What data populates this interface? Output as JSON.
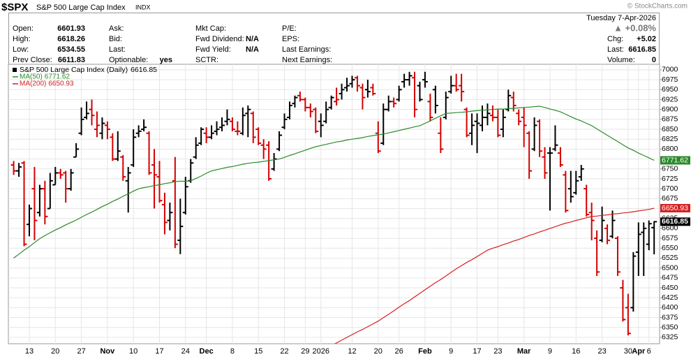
{
  "header": {
    "symbol": "$SPX",
    "name": "S&P 500 Large Cap Index",
    "exchange": "INDX",
    "watermark": "© StockCharts.com",
    "date": "Tuesday  7-Apr-2026",
    "change_pct": "▲ +0.08%",
    "quote": [
      {
        "label": "Open:"
      },
      {
        "label": "High:"
      },
      {
        "label": "Low:"
      },
      {
        "label": "Prev Close:"
      }
    ],
    "col2": [
      {
        "label": "Ask:"
      },
      {
        "label": "Bid:"
      },
      {
        "label": "Last:"
      },
      {
        "label": "Optionable:",
        "value": "yes"
      }
    ],
    "col3": [
      {
        "label": "Mkt Cap:"
      },
      {
        "label": "Fwd Dividend:",
        "value": "N/A"
      },
      {
        "label": "Fwd Yield:",
        "value": "N/A"
      },
      {
        "label": "SCTR:"
      }
    ],
    "col4": [
      {
        "label": "P/E:"
      },
      {
        "label": "EPS:"
      },
      {
        "label": "Last Earnings:"
      },
      {
        "label": "Next Earnings:"
      }
    ],
    "right": [
      {
        "label": "Chg:",
        "value": "+5.02"
      },
      {
        "label": "Last:"
      },
      {
        "label": "Volume:",
        "value": 0
      }
    ]
  },
  "chart_data": {
    "type": "ohlc",
    "title": "S&P 500 Large Cap Index (Daily)",
    "up_color": "#000000",
    "down_color": "#d40000",
    "grid": true,
    "ylim": [
      6309,
      7014
    ],
    "yticks": [
      6325,
      6350,
      6375,
      6400,
      6425,
      6450,
      6475,
      6500,
      6525,
      6550,
      6575,
      6600,
      6625,
      6650,
      6675,
      6700,
      6725,
      6750,
      6775,
      6800,
      6825,
      6850,
      6875,
      6900,
      6925,
      6950,
      6975,
      7000
    ],
    "categories": [
      null,
      null,
      null,
      "13",
      null,
      null,
      null,
      null,
      "20",
      null,
      null,
      null,
      null,
      "27",
      null,
      null,
      null,
      null,
      "Nov",
      null,
      null,
      null,
      null,
      "10",
      null,
      null,
      null,
      null,
      "17",
      null,
      null,
      null,
      null,
      "24",
      null,
      null,
      null,
      "Dec",
      null,
      null,
      null,
      null,
      "8",
      null,
      null,
      null,
      null,
      "15",
      null,
      null,
      null,
      null,
      "22",
      null,
      null,
      null,
      "29",
      null,
      null,
      "2026",
      null,
      null,
      null,
      null,
      null,
      "12",
      null,
      null,
      null,
      null,
      "20",
      null,
      null,
      null,
      "26",
      null,
      null,
      null,
      null,
      "Feb",
      null,
      null,
      null,
      null,
      "9",
      null,
      null,
      null,
      null,
      "17",
      null,
      null,
      null,
      "23",
      null,
      null,
      null,
      null,
      "Mar",
      null,
      null,
      null,
      null,
      "9",
      null,
      null,
      null,
      null,
      "16",
      null,
      null,
      null,
      null,
      "23",
      null,
      null,
      null,
      null,
      "30",
      null,
      "Apr",
      null,
      "6",
      null
    ],
    "series": [
      {
        "name": "S&P 500 Large Cap Index (Daily)",
        "open": [
          6760,
          6745,
          6765,
          6610,
          6700,
          6640,
          6700,
          6650,
          6710,
          6740,
          6740,
          6700,
          6780,
          6840,
          6880,
          6900,
          6850,
          6840,
          6860,
          6830,
          6775,
          6780,
          6720,
          6760,
          6840,
          6850,
          6840,
          6760,
          6730,
          6660,
          6620,
          6720,
          6570,
          6640,
          6720,
          6780,
          6815,
          6840,
          6830,
          6845,
          6855,
          6870,
          6870,
          6845,
          6840,
          6890,
          6890,
          6850,
          6810,
          6810,
          6750,
          6800,
          6855,
          6880,
          6915,
          6935,
          6925,
          6905,
          6900,
          6870,
          6870,
          6905,
          6920,
          6940,
          6955,
          6965,
          6980,
          6955,
          6950,
          6955,
          6840,
          6815,
          6900,
          6920,
          6925,
          6970,
          6975,
          6980,
          6960,
          6975,
          6920,
          6950,
          6840,
          6880,
          6945,
          6960,
          6960,
          6900,
          6840,
          6870,
          6860,
          6880,
          6885,
          6880,
          6850,
          6900,
          6930,
          6890,
          6880,
          6840,
          6800,
          6870,
          6780,
          6790,
          6800,
          6790,
          6735,
          6700,
          6690,
          6730,
          6700,
          6640,
          6575,
          6570,
          6600,
          6580,
          6575,
          6450,
          6400,
          6400,
          6540,
          6590,
          6560,
          6601.93
        ],
        "high": [
          6770,
          6765,
          6770,
          6660,
          6755,
          6710,
          6720,
          6740,
          6755,
          6750,
          6745,
          6750,
          6815,
          6905,
          6920,
          6925,
          6895,
          6880,
          6870,
          6840,
          6845,
          6785,
          6755,
          6850,
          6860,
          6875,
          6845,
          6800,
          6770,
          6690,
          6665,
          6780,
          6675,
          6730,
          6775,
          6830,
          6855,
          6855,
          6860,
          6870,
          6880,
          6900,
          6880,
          6870,
          6905,
          6910,
          6895,
          6855,
          6825,
          6820,
          6790,
          6845,
          6890,
          6920,
          6935,
          6945,
          6930,
          6915,
          6905,
          6890,
          6920,
          6935,
          6955,
          6965,
          6980,
          6985,
          6985,
          6965,
          6975,
          6965,
          6870,
          6915,
          6935,
          6930,
          6960,
          6990,
          6995,
          6995,
          6970,
          6995,
          6940,
          6960,
          6880,
          6945,
          6985,
          6990,
          6990,
          6905,
          6890,
          6890,
          6910,
          6915,
          6910,
          6900,
          6900,
          6950,
          6945,
          6900,
          6905,
          6845,
          6880,
          6875,
          6805,
          6805,
          6860,
          6805,
          6745,
          6745,
          6745,
          6760,
          6710,
          6665,
          6595,
          6655,
          6610,
          6645,
          6580,
          6470,
          6435,
          6540,
          6615,
          6615,
          6620,
          6618.26
        ],
        "low": [
          6735,
          6730,
          6555,
          6580,
          6570,
          6630,
          6610,
          6650,
          6710,
          6725,
          6665,
          6695,
          6780,
          6835,
          6875,
          6860,
          6830,
          6825,
          6825,
          6770,
          6770,
          6720,
          6640,
          6755,
          6830,
          6845,
          6735,
          6650,
          6665,
          6585,
          6595,
          6550,
          6535,
          6635,
          6715,
          6775,
          6810,
          6815,
          6825,
          6835,
          6845,
          6860,
          6845,
          6835,
          6835,
          6830,
          6815,
          6810,
          6775,
          6720,
          6745,
          6795,
          6850,
          6875,
          6905,
          6920,
          6895,
          6880,
          6840,
          6830,
          6865,
          6900,
          6910,
          6925,
          6945,
          6955,
          6945,
          6900,
          6930,
          6935,
          6790,
          6810,
          6895,
          6905,
          6920,
          6955,
          6960,
          6880,
          6920,
          6955,
          6870,
          6890,
          6790,
          6875,
          6940,
          6945,
          6920,
          6830,
          6810,
          6790,
          6845,
          6860,
          6870,
          6830,
          6830,
          6895,
          6895,
          6860,
          6805,
          6725,
          6795,
          6780,
          6725,
          6645,
          6795,
          6755,
          6640,
          6665,
          6685,
          6720,
          6630,
          6570,
          6480,
          6565,
          6560,
          6575,
          6480,
          6365,
          6330,
          6390,
          6480,
          6480,
          6545,
          6534.55
        ],
        "close": [
          6745,
          6755,
          6560,
          6650,
          6620,
          6700,
          6630,
          6720,
          6740,
          6735,
          6700,
          6740,
          6800,
          6875,
          6890,
          6885,
          6860,
          6865,
          6850,
          6775,
          6795,
          6730,
          6740,
          6830,
          6845,
          6855,
          6740,
          6735,
          6670,
          6615,
          6640,
          6560,
          6605,
          6705,
          6765,
          6810,
          6850,
          6830,
          6840,
          6850,
          6860,
          6875,
          6850,
          6845,
          6885,
          6900,
          6830,
          6815,
          6800,
          6725,
          6775,
          6835,
          6875,
          6910,
          6930,
          6925,
          6905,
          6895,
          6845,
          6860,
          6900,
          6930,
          6925,
          6950,
          6960,
          6975,
          6960,
          6930,
          6945,
          6940,
          6795,
          6900,
          6920,
          6915,
          6950,
          6975,
          6985,
          6900,
          6925,
          6970,
          6880,
          6910,
          6800,
          6930,
          6960,
          6950,
          6945,
          6835,
          6860,
          6865,
          6880,
          6890,
          6880,
          6835,
          6880,
          6935,
          6910,
          6870,
          6860,
          6745,
          6860,
          6795,
          6740,
          6790,
          6810,
          6760,
          6645,
          6680,
          6720,
          6750,
          6635,
          6620,
          6490,
          6620,
          6570,
          6620,
          6490,
          6370,
          6335,
          6530,
          6585,
          6600,
          6611.83,
          6616.85
        ]
      },
      {
        "name": "MA(50)",
        "color": "#2a8a2a",
        "values": [
          6525,
          6535,
          6545,
          6554,
          6564,
          6574,
          6582,
          6589,
          6596,
          6602,
          6609,
          6615,
          6621,
          6628,
          6635,
          6641,
          6648,
          6655,
          6661,
          6668,
          6674,
          6681,
          6687,
          6694,
          6700,
          6703,
          6705,
          6708,
          6710,
          6713,
          6715,
          6718,
          6719,
          6719,
          6720,
          6726,
          6732,
          6739,
          6745,
          6748,
          6751,
          6754,
          6756,
          6759,
          6762,
          6764,
          6766,
          6767,
          6769,
          6771,
          6773,
          6775,
          6779,
          6784,
          6788,
          6793,
          6797,
          6802,
          6806,
          6809,
          6812,
          6815,
          6818,
          6820,
          6823,
          6825,
          6827,
          6829,
          6832,
          6834,
          6836,
          6838,
          6841,
          6844,
          6847,
          6850,
          6853,
          6856,
          6859,
          6865,
          6871,
          6878,
          6884,
          6890,
          6891,
          6892,
          6893,
          6894,
          6896,
          6897,
          6898,
          6899,
          6900,
          6901,
          6901,
          6902,
          6903,
          6904,
          6905,
          6906,
          6907,
          6908,
          6905,
          6901,
          6898,
          6894,
          6888,
          6882,
          6876,
          6871,
          6865,
          6859,
          6851,
          6843,
          6835,
          6827,
          6819,
          6811,
          6803,
          6797,
          6790,
          6784,
          6778,
          6771.62
        ]
      },
      {
        "name": "MA(200)",
        "color": "#d62020",
        "values": [
          null,
          null,
          null,
          null,
          null,
          null,
          null,
          null,
          null,
          null,
          null,
          null,
          null,
          null,
          null,
          null,
          null,
          null,
          null,
          null,
          null,
          null,
          null,
          null,
          null,
          null,
          null,
          null,
          null,
          null,
          null,
          null,
          null,
          null,
          null,
          null,
          null,
          null,
          null,
          null,
          null,
          null,
          null,
          null,
          null,
          null,
          null,
          null,
          null,
          null,
          null,
          null,
          null,
          null,
          null,
          null,
          null,
          null,
          null,
          null,
          null,
          6304,
          6311,
          6318,
          6325,
          6332,
          6339,
          6345,
          6352,
          6359,
          6366,
          6375,
          6383,
          6392,
          6401,
          6410,
          6418,
          6427,
          6436,
          6445,
          6454,
          6463,
          6471,
          6480,
          6489,
          6498,
          6506,
          6514,
          6521,
          6529,
          6537,
          6545,
          6550,
          6554,
          6559,
          6563,
          6568,
          6572,
          6577,
          6582,
          6586,
          6591,
          6595,
          6600,
          6604,
          6609,
          6613,
          6616,
          6620,
          6623,
          6627,
          6630,
          6631,
          6633,
          6634,
          6636,
          6637,
          6639,
          6640,
          6642,
          6644,
          6646,
          6648,
          6650.93
        ]
      }
    ]
  }
}
